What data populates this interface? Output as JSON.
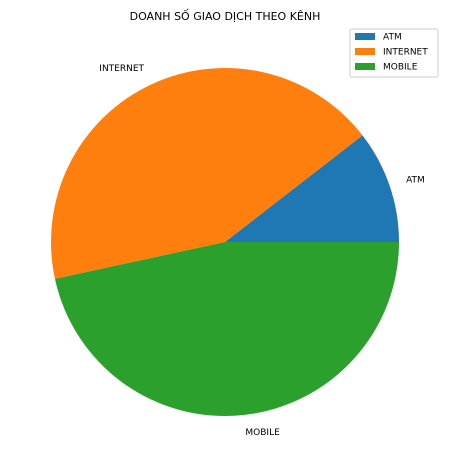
{
  "chart_data": {
    "type": "pie",
    "title": "DOANH SỐ GIAO DỊCH THEO KÊNH",
    "categories": [
      "ATM",
      "INTERNET",
      "MOBILE"
    ],
    "values": [
      10.5,
      42.9,
      46.6
    ],
    "colors": [
      "#1f77b4",
      "#ff7f0e",
      "#2ca02c"
    ],
    "start_angle_deg": 0,
    "direction": "counterclockwise",
    "legend": {
      "position": "top-right",
      "entries": [
        "ATM",
        "INTERNET",
        "MOBILE"
      ]
    }
  }
}
